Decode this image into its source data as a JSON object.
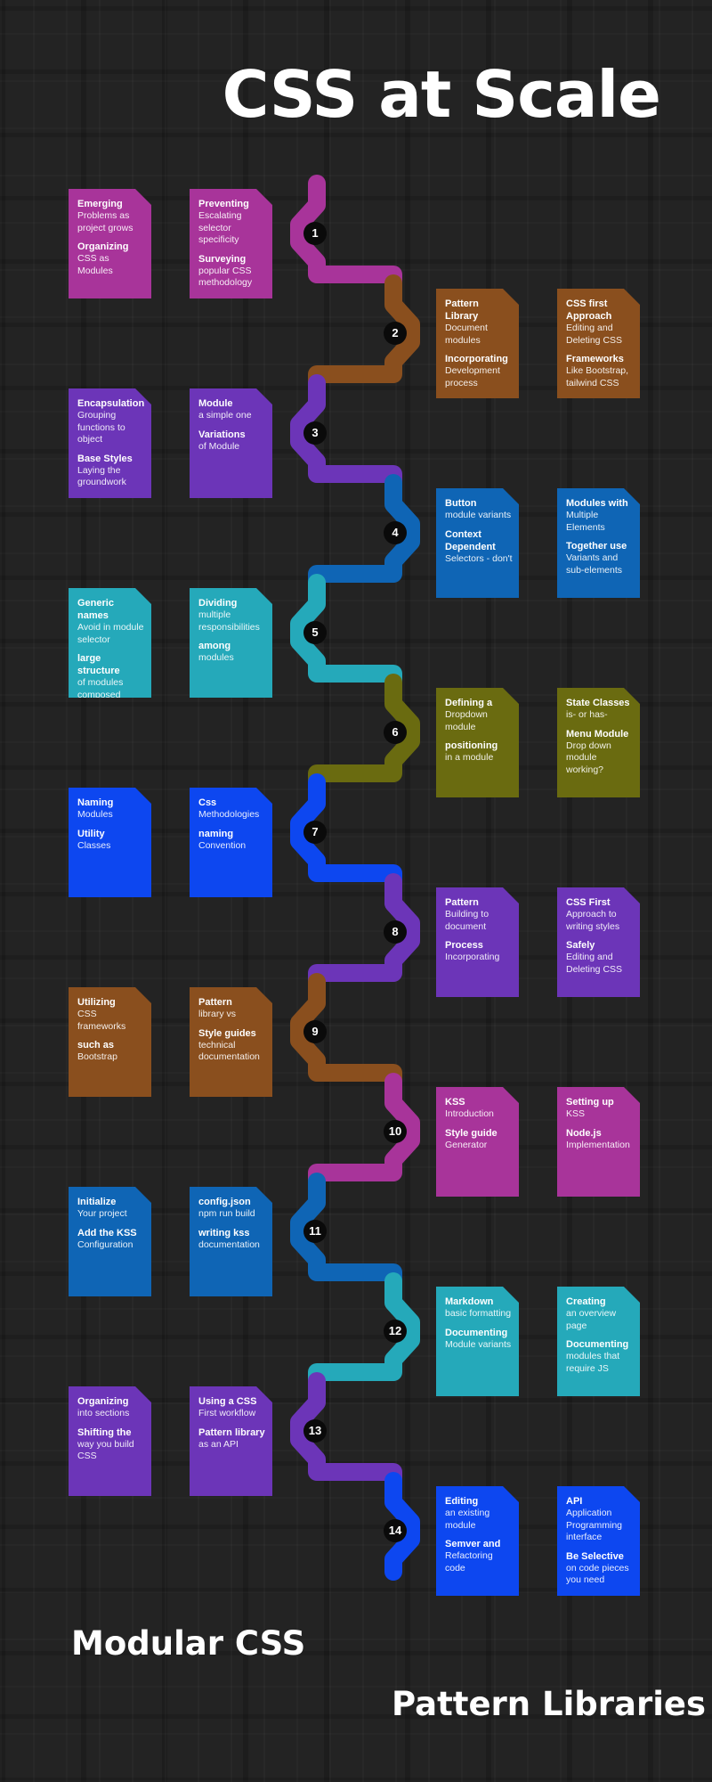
{
  "title": "CSS at Scale",
  "sections": {
    "left": "Modular CSS",
    "right": "Pattern Libraries"
  },
  "steps": [
    {
      "number": "1",
      "color": "#a8349a",
      "side": "left",
      "cards": [
        [
          {
            "title": "Emerging",
            "text": "Problems as project grows"
          },
          {
            "title": "Organizing",
            "text": "CSS as Modules"
          }
        ],
        [
          {
            "title": "Preventing",
            "text": "Escalating selector specificity"
          },
          {
            "title": "Surveying",
            "text": "popular CSS methodology"
          }
        ]
      ]
    },
    {
      "number": "2",
      "color": "#8a4f1e",
      "side": "right",
      "cards": [
        [
          {
            "title": "Pattern Library",
            "text": "Document modules"
          },
          {
            "title": "Incorporating",
            "text": "Development process"
          }
        ],
        [
          {
            "title": "CSS first Approach",
            "text": "Editing and Deleting CSS"
          },
          {
            "title": "Frameworks",
            "text": "Like Bootstrap, tailwind CSS"
          }
        ]
      ]
    },
    {
      "number": "3",
      "color": "#6c35b8",
      "side": "left",
      "cards": [
        [
          {
            "title": "Encapsulation",
            "text": "Grouping functions to object"
          },
          {
            "title": "Base Styles",
            "text": "Laying the groundwork"
          }
        ],
        [
          {
            "title": "Module",
            "text": "a simple one"
          },
          {
            "title": "Variations",
            "text": "of Module"
          }
        ]
      ]
    },
    {
      "number": "4",
      "color": "#0f65b5",
      "side": "right",
      "cards": [
        [
          {
            "title": "Button",
            "text": "module variants"
          },
          {
            "title": "Context Dependent",
            "text": "Selectors - don't"
          }
        ],
        [
          {
            "title": "Modules with",
            "text": "Multiple Elements"
          },
          {
            "title": "Together use",
            "text": "Variants and sub-elements"
          }
        ]
      ]
    },
    {
      "number": "5",
      "color": "#25a9ba",
      "side": "left",
      "cards": [
        [
          {
            "title": "Generic names",
            "text": "Avoid in module selector"
          },
          {
            "title": "large structure",
            "text": "of modules composed"
          }
        ],
        [
          {
            "title": "Dividing",
            "text": "multiple responsibilities"
          },
          {
            "title": "among",
            "text": "modules"
          }
        ]
      ]
    },
    {
      "number": "6",
      "color": "#6a6b10",
      "side": "right",
      "cards": [
        [
          {
            "title": "Defining a",
            "text": "Dropdown module"
          },
          {
            "title": "positioning",
            "text": "in a module"
          }
        ],
        [
          {
            "title": "State Classes",
            "text": "is- or has-"
          },
          {
            "title": "Menu Module",
            "text": "Drop down module working?"
          }
        ]
      ]
    },
    {
      "number": "7",
      "color": "#0d47f0",
      "side": "left",
      "cards": [
        [
          {
            "title": "Naming",
            "text": "Modules"
          },
          {
            "title": "Utility",
            "text": "Classes"
          }
        ],
        [
          {
            "title": "Css",
            "text": "Methodologies"
          },
          {
            "title": "naming",
            "text": "Convention"
          }
        ]
      ]
    },
    {
      "number": "8",
      "color": "#6c35b8",
      "side": "right",
      "cards": [
        [
          {
            "title": "Pattern",
            "text": "Building to document"
          },
          {
            "title": "Process",
            "text": "Incorporating"
          }
        ],
        [
          {
            "title": "CSS First",
            "text": "Approach to writing styles"
          },
          {
            "title": "Safely",
            "text": "Editing and Deleting CSS"
          }
        ]
      ]
    },
    {
      "number": "9",
      "color": "#8a4f1e",
      "side": "left",
      "cards": [
        [
          {
            "title": "Utilizing",
            "text": "CSS frameworks"
          },
          {
            "title": "such as",
            "text": "Bootstrap"
          }
        ],
        [
          {
            "title": "Pattern",
            "text": "library vs"
          },
          {
            "title": "Style guides",
            "text": "technical documentation"
          }
        ]
      ]
    },
    {
      "number": "10",
      "color": "#a8349a",
      "side": "right",
      "cards": [
        [
          {
            "title": "KSS",
            "text": "Introduction"
          },
          {
            "title": "Style guide",
            "text": "Generator"
          }
        ],
        [
          {
            "title": "Setting up",
            "text": "KSS"
          },
          {
            "title": "Node.js",
            "text": "Implementation"
          }
        ]
      ]
    },
    {
      "number": "11",
      "color": "#0f65b5",
      "side": "left",
      "cards": [
        [
          {
            "title": "Initialize",
            "text": "Your project"
          },
          {
            "title": "Add the KSS",
            "text": "Configuration"
          }
        ],
        [
          {
            "title": "config.json",
            "text": "npm run build"
          },
          {
            "title": "writing kss",
            "text": "documentation"
          }
        ]
      ]
    },
    {
      "number": "12",
      "color": "#25a9ba",
      "side": "right",
      "cards": [
        [
          {
            "title": "Markdown",
            "text": "basic formatting"
          },
          {
            "title": "Documenting",
            "text": "Module variants"
          }
        ],
        [
          {
            "title": "Creating",
            "text": "an overview page"
          },
          {
            "title": "Documenting",
            "text": "modules that require JS"
          }
        ]
      ]
    },
    {
      "number": "13",
      "color": "#6c35b8",
      "side": "left",
      "cards": [
        [
          {
            "title": "Organizing",
            "text": "into sections"
          },
          {
            "title": "Shifting the",
            "text": "way you build CSS"
          }
        ],
        [
          {
            "title": "Using a CSS",
            "text": "First workflow"
          },
          {
            "title": "Pattern library",
            "text": "as an API"
          }
        ]
      ]
    },
    {
      "number": "14",
      "color": "#0d47f0",
      "side": "right",
      "cards": [
        [
          {
            "title": "Editing",
            "text": "an existing module"
          },
          {
            "title": "Semver and",
            "text": "Refactoring code"
          }
        ],
        [
          {
            "title": "API",
            "text": "Application Programming interface"
          },
          {
            "title": "Be Selective",
            "text": "on code pieces you need"
          }
        ]
      ]
    }
  ]
}
